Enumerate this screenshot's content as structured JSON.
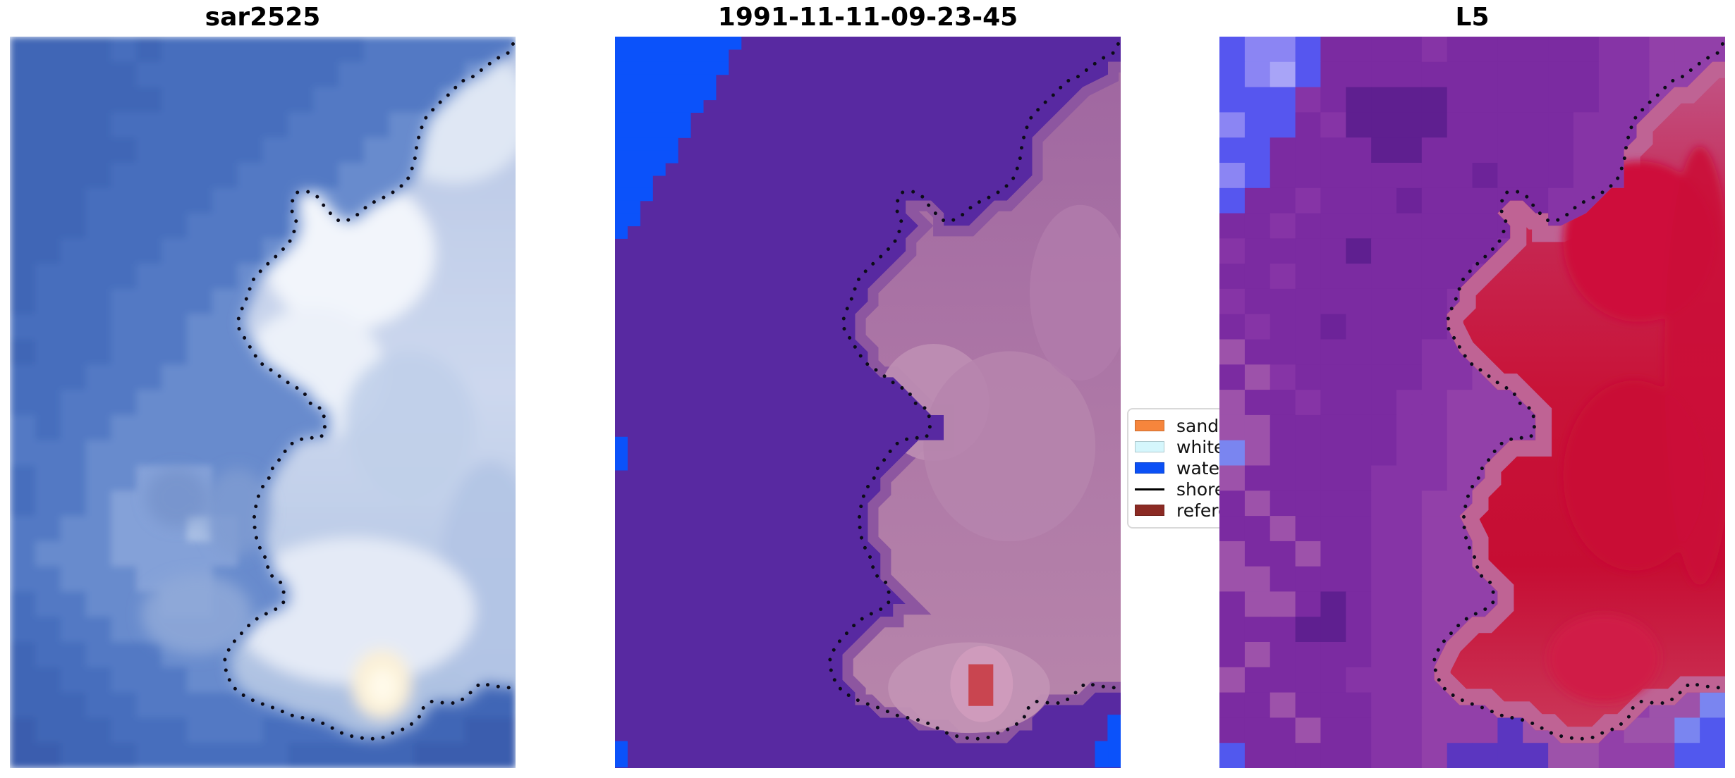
{
  "chart_data": {
    "type": "heatmap",
    "title": "",
    "panels": [
      {
        "title": "sar2525"
      },
      {
        "title": "1991-11-11-09-23-45"
      },
      {
        "title": "L5"
      }
    ],
    "legend_entries": [
      "sand",
      "whitewater",
      "water",
      "shoreline",
      "reference"
    ],
    "legend_position": "center right, clipped by third panel"
  },
  "figure": {
    "background": "#ffffff",
    "title_color": "#000000"
  },
  "panels": [
    {
      "title": "sar2525"
    },
    {
      "title": "1991-11-11-09-23-45"
    },
    {
      "title": "L5"
    }
  ],
  "legend": {
    "entries": [
      {
        "label": "sand",
        "type": "patch",
        "color": "#f6853c"
      },
      {
        "label": "whitewater",
        "type": "patch",
        "color": "#d5f6fc"
      },
      {
        "label": "water",
        "type": "patch",
        "color": "#0b50f5"
      },
      {
        "label": "shoreline",
        "type": "line",
        "color": "#000000"
      },
      {
        "label": "reference",
        "type": "patch",
        "color": "#8b2a23"
      }
    ]
  },
  "shoreline": {
    "color": "#0c0c18",
    "points": [
      [
        0.995,
        0.01
      ],
      [
        0.986,
        0.022
      ],
      [
        0.96,
        0.031
      ],
      [
        0.941,
        0.041
      ],
      [
        0.911,
        0.057
      ],
      [
        0.893,
        0.061
      ],
      [
        0.868,
        0.079
      ],
      [
        0.844,
        0.094
      ],
      [
        0.82,
        0.113
      ],
      [
        0.812,
        0.129
      ],
      [
        0.805,
        0.146
      ],
      [
        0.802,
        0.164
      ],
      [
        0.795,
        0.181
      ],
      [
        0.785,
        0.198
      ],
      [
        0.762,
        0.211
      ],
      [
        0.736,
        0.221
      ],
      [
        0.711,
        0.229
      ],
      [
        0.683,
        0.246
      ],
      [
        0.662,
        0.253
      ],
      [
        0.649,
        0.251
      ],
      [
        0.637,
        0.244
      ],
      [
        0.623,
        0.233
      ],
      [
        0.607,
        0.218
      ],
      [
        0.59,
        0.212
      ],
      [
        0.566,
        0.213
      ],
      [
        0.559,
        0.222
      ],
      [
        0.558,
        0.24
      ],
      [
        0.566,
        0.252
      ],
      [
        0.561,
        0.27
      ],
      [
        0.551,
        0.283
      ],
      [
        0.528,
        0.299
      ],
      [
        0.5,
        0.317
      ],
      [
        0.478,
        0.335
      ],
      [
        0.471,
        0.354
      ],
      [
        0.462,
        0.366
      ],
      [
        0.455,
        0.38
      ],
      [
        0.45,
        0.39
      ],
      [
        0.453,
        0.399
      ],
      [
        0.471,
        0.42
      ],
      [
        0.487,
        0.438
      ],
      [
        0.503,
        0.451
      ],
      [
        0.517,
        0.456
      ],
      [
        0.554,
        0.475
      ],
      [
        0.58,
        0.485
      ],
      [
        0.597,
        0.504
      ],
      [
        0.618,
        0.509
      ],
      [
        0.623,
        0.526
      ],
      [
        0.622,
        0.543
      ],
      [
        0.611,
        0.549
      ],
      [
        0.586,
        0.548
      ],
      [
        0.562,
        0.554
      ],
      [
        0.551,
        0.56
      ],
      [
        0.54,
        0.571
      ],
      [
        0.533,
        0.578
      ],
      [
        0.515,
        0.594
      ],
      [
        0.512,
        0.604
      ],
      [
        0.497,
        0.618
      ],
      [
        0.488,
        0.635
      ],
      [
        0.483,
        0.658
      ],
      [
        0.485,
        0.68
      ],
      [
        0.495,
        0.7
      ],
      [
        0.508,
        0.716
      ],
      [
        0.512,
        0.734
      ],
      [
        0.537,
        0.747
      ],
      [
        0.544,
        0.767
      ],
      [
        0.54,
        0.775
      ],
      [
        0.523,
        0.784
      ],
      [
        0.513,
        0.787
      ],
      [
        0.494,
        0.793
      ],
      [
        0.475,
        0.803
      ],
      [
        0.455,
        0.818
      ],
      [
        0.437,
        0.832
      ],
      [
        0.425,
        0.85
      ],
      [
        0.428,
        0.872
      ],
      [
        0.443,
        0.89
      ],
      [
        0.465,
        0.902
      ],
      [
        0.489,
        0.91
      ],
      [
        0.512,
        0.915
      ],
      [
        0.537,
        0.922
      ],
      [
        0.562,
        0.929
      ],
      [
        0.586,
        0.932
      ],
      [
        0.611,
        0.936
      ],
      [
        0.637,
        0.945
      ],
      [
        0.662,
        0.954
      ],
      [
        0.687,
        0.958
      ],
      [
        0.711,
        0.96
      ],
      [
        0.735,
        0.959
      ],
      [
        0.76,
        0.951
      ],
      [
        0.785,
        0.945
      ],
      [
        0.799,
        0.937
      ],
      [
        0.812,
        0.928
      ],
      [
        0.813,
        0.92
      ],
      [
        0.834,
        0.909
      ],
      [
        0.861,
        0.911
      ],
      [
        0.883,
        0.911
      ],
      [
        0.902,
        0.903
      ],
      [
        0.909,
        0.898
      ],
      [
        0.93,
        0.884
      ],
      [
        0.937,
        0.885
      ],
      [
        0.959,
        0.888
      ],
      [
        0.986,
        0.89
      ],
      [
        1.0,
        0.889
      ]
    ]
  },
  "render": {
    "left": {
      "palette": {
        "1": "#3a5dae",
        "2": "#3f66b6",
        "3": "#476ebd",
        "4": "#5379c4",
        "5": "#688bcd",
        "6": "#84a1d8",
        "7": "#a9bfe4"
      },
      "grid": [
        "22223233333333444444",
        "22222333333334444455",
        "22222233333344444555",
        "22223333333444455555",
        "22222333334444555555",
        "22223333344445555555",
        "22233333444455555555",
        "22233334444555555555",
        "22333344445555555555",
        "23333444455555555555",
        "23334444555555555555",
        "33334445555555555555",
        "23334445555555555555",
        "33344455555555555555",
        "33444555555555555555",
        "43445555555555555555",
        "44455555555555555555",
        "34455666555555555555",
        "34456666555555555555",
        "44556667655555555555",
        "45556666655555555555",
        "44555666555555555555",
        "34455566555555555555",
        "33445555555555555555",
        "23344455555544443333",
        "22334445555444333322",
        "22233444444433332222",
        "12223334443333222211",
        "11222333333222221111"
      ],
      "land_gradient": [
        "#b6c5e4",
        "#cdd8ee",
        "#a9bee0"
      ],
      "cloud_blobs": [
        [
          0.88,
          0.105,
          0.15,
          0.095,
          "#dfe7f4",
          1
        ],
        [
          0.67,
          0.295,
          0.17,
          0.105,
          "#f2f5fb",
          1
        ],
        [
          0.6,
          0.46,
          0.14,
          0.09,
          "#ecf1f9",
          1
        ],
        [
          0.79,
          0.53,
          0.13,
          0.1,
          "#c0cfe9",
          0.9
        ],
        [
          0.95,
          0.74,
          0.1,
          0.16,
          "#b2c4e4",
          0.9
        ],
        [
          0.68,
          0.785,
          0.24,
          0.1,
          "#e4eaf6",
          1
        ],
        [
          0.735,
          0.885,
          0.058,
          0.047,
          "#fbf0d6",
          1
        ],
        [
          0.737,
          0.888,
          0.029,
          0.025,
          "#fffaea",
          1
        ]
      ],
      "water_blobs": [
        [
          0.37,
          0.79,
          0.11,
          0.055,
          "#8fa9d8",
          0.85
        ],
        [
          0.45,
          0.65,
          0.065,
          0.06,
          "#7f9cd2",
          0.8
        ],
        [
          0.33,
          0.63,
          0.06,
          0.04,
          "#6f8dc7",
          0.6
        ]
      ]
    },
    "middle": {
      "background": "#5829a1",
      "water_color": "#0b52fa",
      "corner_stair": {
        "top_extent": 0.235,
        "left_extent": 0.28
      },
      "blue_rects": [
        [
          0.0,
          0.547,
          0.025,
          0.046
        ],
        [
          0.0,
          0.963,
          0.025,
          0.036
        ],
        [
          0.974,
          0.927,
          0.026,
          0.072
        ],
        [
          0.949,
          0.963,
          0.027,
          0.036
        ]
      ],
      "land_gradient": [
        "#9f66a0",
        "#ad77a6",
        "#b886ab"
      ],
      "land_edge_color": "#8d56a0",
      "light_blobs": [
        [
          0.63,
          0.5,
          0.11,
          0.08,
          "#bd8db2",
          0.95
        ],
        [
          0.78,
          0.56,
          0.17,
          0.13,
          "#b684ad",
          0.9
        ],
        [
          0.7,
          0.89,
          0.16,
          0.062,
          "#c292b4",
          0.95
        ],
        [
          0.92,
          0.35,
          0.1,
          0.12,
          "#b27cab",
          0.8
        ],
        [
          0.725,
          0.885,
          0.062,
          0.052,
          "#d09cbc",
          0.9
        ]
      ],
      "reference_rect": [
        0.699,
        0.858,
        0.049,
        0.057,
        "#c94550"
      ]
    },
    "right": {
      "palette": {
        "a": "#6d2399",
        "b": "#7b2ba1",
        "c": "#8634a6",
        "d": "#9240a9",
        "e": "#9d52aa",
        "f": "#5f1f90",
        "i": "#5b36c0",
        "B": "#5656ef",
        "L": "#8b85f3",
        "M": "#a8a4f7",
        "G": "#7a85f0",
        "H": "#5158ee"
      },
      "grid": [
        "BLLBbbbbcbbbbbbccddd",
        "BLMBbbbbbbbbbbbccddd",
        "BBBcbffffbbbbbbccddd",
        "LBBbcffffbbbbbcccddd",
        "BBbbbbffbbbbbbcccddd",
        "LBbbbbbbbbabbbccdddd",
        "Bbbcbbbabbbbbcccdddd",
        "bbcbbbbbbbbbcccddddd",
        "cbbbbfbbbbbccccddddd",
        "bbcbbbbbbbcccccddddd",
        "cbbbbbbbbccccddddddd",
        "bcbbabbbbcccdddddddd",
        "ebbbbbbbcccddddddddd",
        "becbbbbbccddddddddde",
        "ebbcbbbccddddddddeee",
        "eebbbbbccdddddddeeee",
        "Gebbbbbccdddddddeeee",
        "ebbbbbcccddddddeeeee",
        "bebbbbccddddddeeeeee",
        "bbebbbccddddddeeeeee",
        "ebbebbccddddddeeeeee",
        "eebbbbccdddddeeeeeee",
        "beebfbccdddddeeeeeee",
        "bbbffbccdddddeeeeeee",
        "bebbbbccdddddeeeeeee",
        "ebbbbcccddddeeeeeeee",
        "bbebbbccddddeeeedeeG",
        "bbbebbccdddieeddeeGH",
        "HbbbbbccdiiiieedddHH"
      ],
      "red_gradient": [
        "#c05d90",
        "#c62a55",
        "#c81338",
        "#c60d33",
        "#cb3a5c"
      ],
      "edge_band_color": "#bf6394",
      "core_blobs": [
        [
          0.83,
          0.28,
          0.15,
          0.11,
          "#ce0e3a",
          1
        ],
        [
          0.82,
          0.6,
          0.14,
          0.13,
          "#c90c34",
          1
        ],
        [
          0.76,
          0.85,
          0.11,
          0.06,
          "#d01e46",
          1
        ],
        [
          0.95,
          0.45,
          0.07,
          0.3,
          "#cb1038",
          0.9
        ]
      ]
    }
  }
}
